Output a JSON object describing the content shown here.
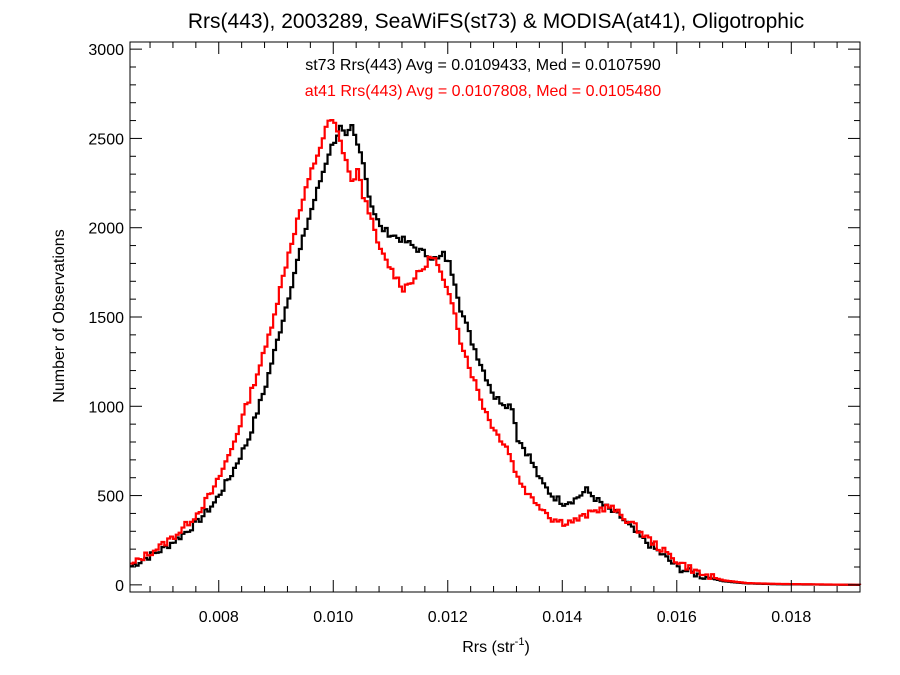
{
  "chart_data": {
    "type": "line",
    "title": "Rrs(443), 2003289, SeaWiFS(st73) & MODISA(at41), Oligotrophic",
    "xlabel": "Rrs (str",
    "xlabel_sup": "-1",
    "xlabel_end": ")",
    "ylabel": "Number of Observations",
    "xlim": [
      0.00645,
      0.0192
    ],
    "ylim": [
      -40,
      3040
    ],
    "xticks": [
      0.008,
      0.01,
      0.012,
      0.014,
      0.016,
      0.018
    ],
    "xtick_labels": [
      "0.008",
      "0.010",
      "0.012",
      "0.014",
      "0.016",
      "0.018"
    ],
    "yticks": [
      0,
      500,
      1000,
      1500,
      2000,
      2500,
      3000
    ],
    "ytick_labels": [
      "0",
      "500",
      "1000",
      "1500",
      "2000",
      "2500",
      "3000"
    ],
    "grid": false,
    "annotations": [
      {
        "text": "st73 Rrs(443) Avg = 0.0109433, Med = 0.0107590",
        "color": "#000000"
      },
      {
        "text": "at41 Rrs(443) Avg = 0.0107808, Med = 0.0105480",
        "color": "#ff0000"
      }
    ],
    "series": [
      {
        "name": "st73",
        "color": "#000000",
        "style": "step",
        "points": [
          [
            0.00645,
            105
          ],
          [
            0.0067,
            150
          ],
          [
            0.007,
            200
          ],
          [
            0.0073,
            270
          ],
          [
            0.0076,
            350
          ],
          [
            0.0079,
            460
          ],
          [
            0.0082,
            620
          ],
          [
            0.0085,
            820
          ],
          [
            0.0088,
            1120
          ],
          [
            0.0091,
            1490
          ],
          [
            0.0093,
            1750
          ],
          [
            0.0095,
            2000
          ],
          [
            0.0097,
            2210
          ],
          [
            0.0099,
            2420
          ],
          [
            0.0101,
            2560
          ],
          [
            0.0102,
            2500
          ],
          [
            0.0103,
            2560
          ],
          [
            0.0104,
            2460
          ],
          [
            0.0105,
            2380
          ],
          [
            0.0106,
            2180
          ],
          [
            0.0107,
            2080
          ],
          [
            0.0108,
            2000
          ],
          [
            0.011,
            1960
          ],
          [
            0.0112,
            1930
          ],
          [
            0.0114,
            1890
          ],
          [
            0.0116,
            1850
          ],
          [
            0.0118,
            1820
          ],
          [
            0.0119,
            1850
          ],
          [
            0.012,
            1800
          ],
          [
            0.0121,
            1700
          ],
          [
            0.0122,
            1550
          ],
          [
            0.0124,
            1360
          ],
          [
            0.0126,
            1200
          ],
          [
            0.0128,
            1050
          ],
          [
            0.013,
            1010
          ],
          [
            0.0131,
            1000
          ],
          [
            0.0132,
            820
          ],
          [
            0.0134,
            720
          ],
          [
            0.0136,
            580
          ],
          [
            0.0138,
            500
          ],
          [
            0.014,
            460
          ],
          [
            0.0142,
            480
          ],
          [
            0.0144,
            530
          ],
          [
            0.0146,
            470
          ],
          [
            0.0148,
            420
          ],
          [
            0.015,
            380
          ],
          [
            0.0152,
            310
          ],
          [
            0.0154,
            250
          ],
          [
            0.0157,
            175
          ],
          [
            0.016,
            95
          ],
          [
            0.0164,
            50
          ],
          [
            0.0168,
            20
          ],
          [
            0.0172,
            8
          ],
          [
            0.0178,
            3
          ],
          [
            0.0192,
            0
          ]
        ]
      },
      {
        "name": "at41",
        "color": "#ff0000",
        "style": "step",
        "points": [
          [
            0.00645,
            110
          ],
          [
            0.0067,
            165
          ],
          [
            0.007,
            225
          ],
          [
            0.0073,
            300
          ],
          [
            0.0076,
            400
          ],
          [
            0.0079,
            540
          ],
          [
            0.0082,
            760
          ],
          [
            0.0085,
            1040
          ],
          [
            0.0088,
            1330
          ],
          [
            0.009,
            1590
          ],
          [
            0.0092,
            1860
          ],
          [
            0.0094,
            2100
          ],
          [
            0.0096,
            2320
          ],
          [
            0.0098,
            2500
          ],
          [
            0.0099,
            2600
          ],
          [
            0.01,
            2580
          ],
          [
            0.0101,
            2480
          ],
          [
            0.0102,
            2380
          ],
          [
            0.0103,
            2250
          ],
          [
            0.0104,
            2320
          ],
          [
            0.0105,
            2180
          ],
          [
            0.0106,
            2100
          ],
          [
            0.0107,
            1970
          ],
          [
            0.0108,
            1870
          ],
          [
            0.011,
            1760
          ],
          [
            0.0112,
            1660
          ],
          [
            0.0114,
            1720
          ],
          [
            0.0116,
            1790
          ],
          [
            0.0117,
            1850
          ],
          [
            0.0118,
            1790
          ],
          [
            0.0119,
            1700
          ],
          [
            0.012,
            1610
          ],
          [
            0.0121,
            1530
          ],
          [
            0.0122,
            1370
          ],
          [
            0.0124,
            1180
          ],
          [
            0.0126,
            1000
          ],
          [
            0.0128,
            860
          ],
          [
            0.013,
            780
          ],
          [
            0.0132,
            600
          ],
          [
            0.0134,
            500
          ],
          [
            0.0136,
            440
          ],
          [
            0.0138,
            370
          ],
          [
            0.014,
            350
          ],
          [
            0.0142,
            360
          ],
          [
            0.0144,
            390
          ],
          [
            0.0146,
            420
          ],
          [
            0.0148,
            440
          ],
          [
            0.015,
            390
          ],
          [
            0.0152,
            340
          ],
          [
            0.0154,
            280
          ],
          [
            0.0157,
            200
          ],
          [
            0.016,
            130
          ],
          [
            0.0164,
            60
          ],
          [
            0.0168,
            25
          ],
          [
            0.0172,
            10
          ],
          [
            0.0178,
            5
          ],
          [
            0.0192,
            0
          ]
        ]
      }
    ]
  }
}
